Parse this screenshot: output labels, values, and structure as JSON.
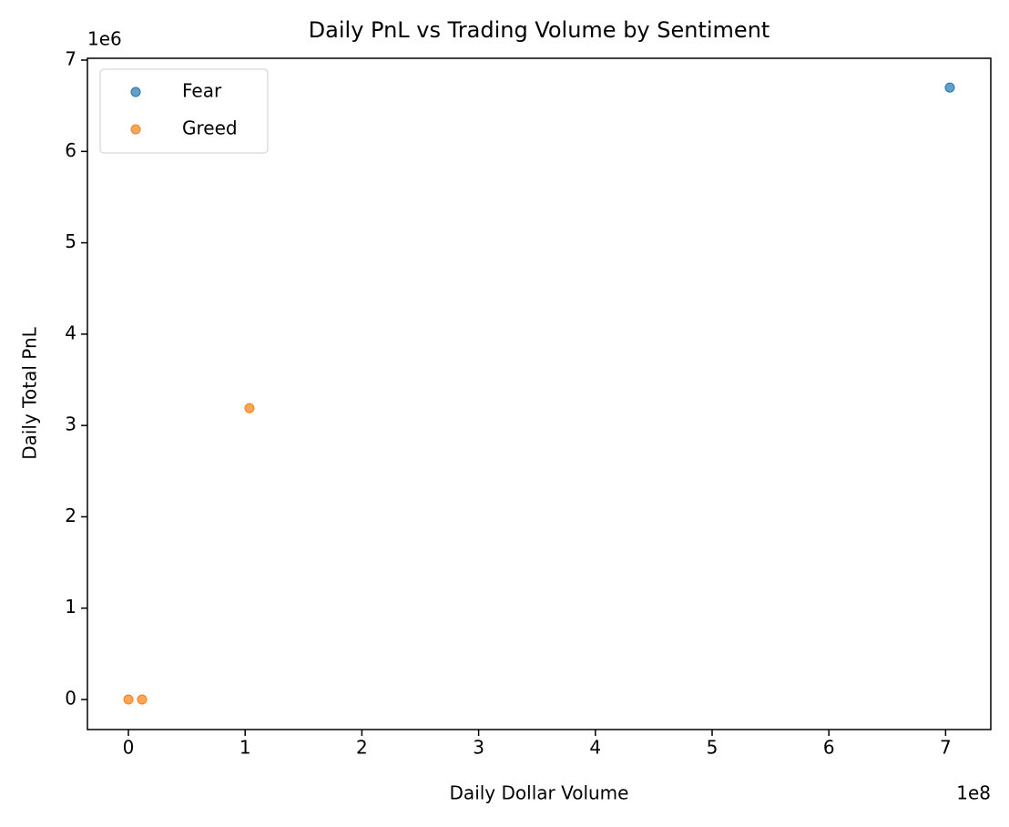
{
  "chart_data": {
    "type": "scatter",
    "title": "Daily PnL vs Trading Volume by Sentiment",
    "x_label": "Daily Dollar Volume",
    "y_label": "Daily Total PnL",
    "x_offset_label": "1e8",
    "y_offset_label": "1e6",
    "series": [
      {
        "name": "Fear",
        "color": "#1f77b4",
        "x": [
          703600000
        ],
        "values": [
          6700000
        ]
      },
      {
        "name": "Greed",
        "color": "#ff7f0e",
        "x": [
          0,
          11700000,
          103700000
        ],
        "values": [
          0,
          0,
          3190000
        ]
      }
    ],
    "xlim": [
      -35100000,
      738700000
    ],
    "xticks": [
      {
        "value": 0,
        "label": "0"
      },
      {
        "value": 100000000,
        "label": "1"
      },
      {
        "value": 200000000,
        "label": "2"
      },
      {
        "value": 300000000,
        "label": "3"
      },
      {
        "value": 400000000,
        "label": "4"
      },
      {
        "value": 500000000,
        "label": "5"
      },
      {
        "value": 600000000,
        "label": "6"
      },
      {
        "value": 700000000,
        "label": "7"
      }
    ],
    "ylim": [
      -329000,
      7020000
    ],
    "yticks": [
      {
        "value": 0,
        "label": "0"
      },
      {
        "value": 1000000,
        "label": "1"
      },
      {
        "value": 2000000,
        "label": "2"
      },
      {
        "value": 3000000,
        "label": "3"
      },
      {
        "value": 4000000,
        "label": "4"
      },
      {
        "value": 5000000,
        "label": "5"
      },
      {
        "value": 6000000,
        "label": "6"
      },
      {
        "value": 7000000,
        "label": "7"
      }
    ],
    "grid": false,
    "legend": "upper-left"
  }
}
